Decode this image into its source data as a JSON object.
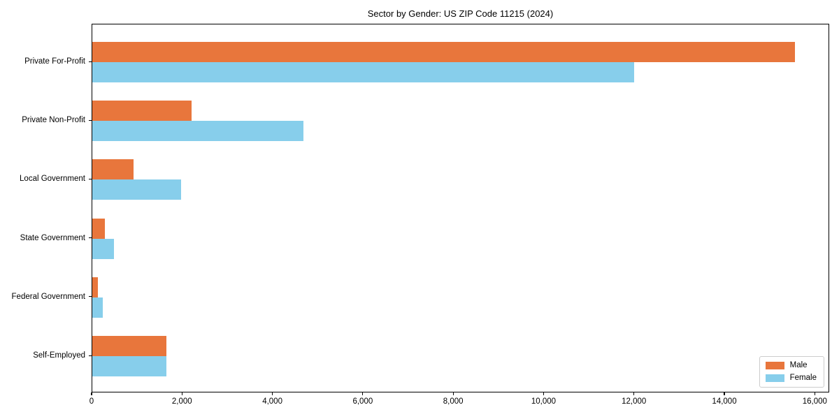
{
  "chart_data": {
    "type": "bar",
    "orientation": "horizontal",
    "title": "Sector by Gender: US ZIP Code 11215 (2024)",
    "categories": [
      "Private For-Profit",
      "Private Non-Profit",
      "Local Government",
      "State Government",
      "Federal Government",
      "Self-Employed"
    ],
    "series": [
      {
        "name": "Male",
        "color": "#e8763c",
        "values": [
          15550,
          2190,
          910,
          280,
          120,
          1640
        ]
      },
      {
        "name": "Female",
        "color": "#87ceeb",
        "values": [
          11990,
          4670,
          1960,
          480,
          230,
          1640
        ]
      }
    ],
    "xlabel": "",
    "ylabel": "",
    "xlim": [
      0,
      16320
    ],
    "x_ticks": [
      0,
      2000,
      4000,
      6000,
      8000,
      10000,
      12000,
      14000,
      16000
    ],
    "x_tick_labels": [
      "0",
      "2,000",
      "4,000",
      "6,000",
      "8,000",
      "10,000",
      "12,000",
      "14,000",
      "16,000"
    ],
    "grid": false,
    "legend": {
      "position": "lower right",
      "entries": [
        {
          "label": "Male",
          "color": "#e8763c"
        },
        {
          "label": "Female",
          "color": "#87ceeb"
        }
      ]
    }
  }
}
